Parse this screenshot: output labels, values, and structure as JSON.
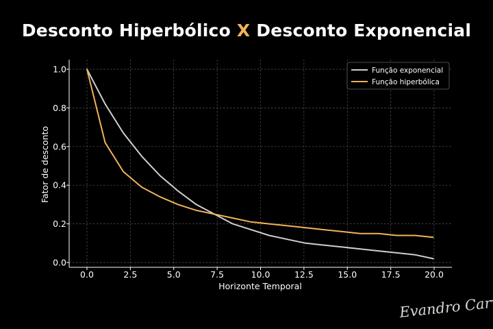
{
  "header": {
    "title_part1": "Desconto Hiperbólico",
    "title_x": "X",
    "title_part2": "Desconto Exponencial"
  },
  "signature": "Evandro Carvalho",
  "colors": {
    "background": "#000000",
    "exponential": "#d0d0d0",
    "hyperbolic": "#f2b35a",
    "accent": "#f2b35a"
  },
  "chart_data": {
    "type": "line",
    "title": "",
    "xlabel": "Horizonte Temporal",
    "ylabel": "Fator de desconto",
    "xlim": [
      0,
      20
    ],
    "ylim": [
      0,
      1
    ],
    "grid": true,
    "legend_position": "top-right",
    "x_ticks": [
      "0.0",
      "2.5",
      "5.0",
      "7.5",
      "10.0",
      "12.5",
      "15.0",
      "17.5",
      "20.0"
    ],
    "y_ticks": [
      "0.0",
      "0.2",
      "0.4",
      "0.6",
      "0.8",
      "1.0"
    ],
    "x": [
      0,
      1.05,
      2.1,
      3.15,
      4.2,
      5.25,
      6.3,
      7.35,
      8.4,
      9.45,
      10.5,
      11.55,
      12.6,
      13.65,
      14.7,
      15.75,
      16.8,
      17.85,
      18.9,
      19.95
    ],
    "series": [
      {
        "name": "Função exponencial",
        "values": [
          1.0,
          0.82,
          0.67,
          0.55,
          0.45,
          0.37,
          0.3,
          0.25,
          0.2,
          0.17,
          0.14,
          0.12,
          0.1,
          0.09,
          0.08,
          0.07,
          0.06,
          0.05,
          0.04,
          0.02
        ]
      },
      {
        "name": "Função hiperbólica",
        "values": [
          1.0,
          0.62,
          0.47,
          0.39,
          0.34,
          0.3,
          0.27,
          0.25,
          0.23,
          0.21,
          0.2,
          0.19,
          0.18,
          0.17,
          0.16,
          0.15,
          0.15,
          0.14,
          0.14,
          0.13
        ]
      }
    ]
  }
}
